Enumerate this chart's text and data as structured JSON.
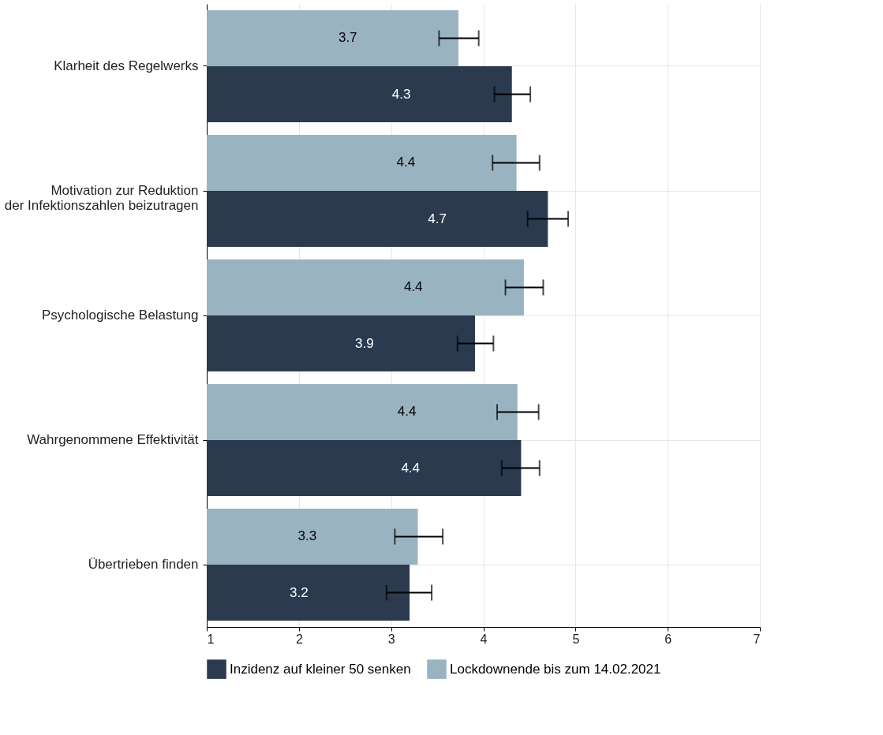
{
  "chart_data": {
    "type": "bar",
    "orientation": "horizontal",
    "categories": [
      "Klarheit des Regelwerks",
      "Motivation zur Reduktion\nder Infektionszahlen beizutragen",
      "Psychologische Belastung",
      "Wahrgenommene Effektivität",
      "Übertrieben finden"
    ],
    "series": [
      {
        "name": "Lockdownende bis zum 14.02.2021",
        "color": "#9ab3c1",
        "values": [
          3.73,
          4.36,
          4.44,
          4.37,
          3.29
        ],
        "value_labels": [
          "3.7",
          "4.4",
          "4.4",
          "4.4",
          "3.3"
        ],
        "errors": [
          [
            3.52,
            3.95
          ],
          [
            4.1,
            4.61
          ],
          [
            4.24,
            4.65
          ],
          [
            4.15,
            4.6
          ],
          [
            3.04,
            3.56
          ]
        ]
      },
      {
        "name": "Inzidenz auf kleiner 50 senken",
        "color": "#2b3a4f",
        "values": [
          4.31,
          4.7,
          3.91,
          4.41,
          3.2
        ],
        "value_labels": [
          "4.3",
          "4.7",
          "3.9",
          "4.4",
          "3.2"
        ],
        "errors": [
          [
            4.12,
            4.51
          ],
          [
            4.48,
            4.92
          ],
          [
            3.72,
            4.11
          ],
          [
            4.2,
            4.61
          ],
          [
            2.95,
            3.44
          ]
        ]
      }
    ],
    "xlim": [
      1,
      7
    ],
    "xticks": [
      1,
      2,
      3,
      4,
      5,
      6,
      7
    ],
    "grid": true,
    "legend": "bottom"
  }
}
